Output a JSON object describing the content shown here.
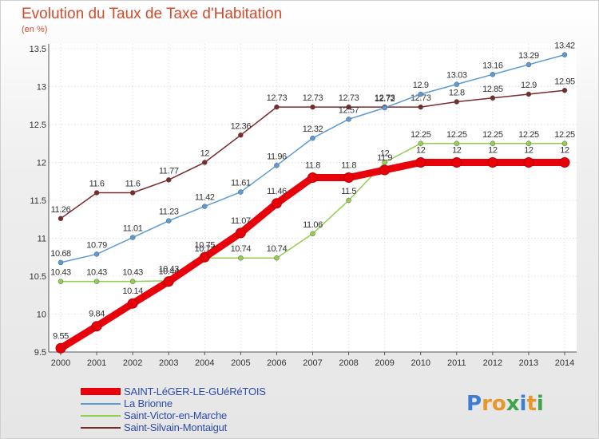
{
  "title": "Evolution du Taux de Taxe d'Habitation",
  "subtitle": "(en %)",
  "logo": {
    "text": "Proxiti",
    "colors": [
      "#3a7fd5",
      "#e8962c",
      "#e8962c",
      "#3fa34d",
      "#3a7fd5",
      "#e8962c",
      "#3fa34d"
    ]
  },
  "chart_data": {
    "type": "line",
    "x": [
      "2000",
      "2001",
      "2002",
      "2003",
      "2004",
      "2005",
      "2006",
      "2007",
      "2008",
      "2009",
      "2010",
      "2011",
      "2012",
      "2013",
      "2014"
    ],
    "ylim": [
      9.5,
      13.5
    ],
    "y_ticks": [
      "9.5",
      "10",
      "10.5",
      "11",
      "11.5",
      "12",
      "12.5",
      "13",
      "13.5"
    ],
    "grid": true,
    "legend_position": "bottom-left",
    "series": [
      {
        "name": "Saint-Silvain-Montaigut",
        "color": "#7a2a2a",
        "values": [
          11.26,
          11.6,
          11.6,
          11.77,
          12,
          12.36,
          12.73,
          12.73,
          12.73,
          12.73,
          12.73,
          12.8,
          12.85,
          12.9,
          12.95
        ],
        "labels": [
          "11.26",
          "11.6",
          "11.6",
          "11.77",
          "12",
          "12.36",
          "12.73",
          "12.73",
          "12.73",
          "12.73",
          "12.73",
          "12.8",
          "12.85",
          "12.9",
          "12.95"
        ]
      },
      {
        "name": "La Brionne",
        "color": "#5b9bd5",
        "values": [
          10.68,
          10.79,
          11.01,
          11.23,
          11.42,
          11.61,
          11.96,
          12.32,
          12.57,
          12.72,
          12.9,
          13.03,
          13.16,
          13.29,
          13.42
        ],
        "labels": [
          "10.68",
          "10.79",
          "11.01",
          "11.23",
          "11.42",
          "11.61",
          "11.96",
          "12.32",
          "12.57",
          "12.72",
          "12.9",
          "13.03",
          "13.16",
          "13.29",
          "13.42"
        ]
      },
      {
        "name": "Saint-Victor-en-Marche",
        "color": "#8fd14f",
        "values": [
          10.43,
          10.43,
          10.43,
          10.44,
          10.74,
          10.74,
          10.74,
          11.06,
          11.5,
          12,
          12.25,
          12.25,
          12.25,
          12.25,
          12.25
        ],
        "labels": [
          "10.43",
          "10.43",
          "10.43",
          "10.44",
          "10.74",
          "10.74",
          "10.74",
          "11.06",
          "11.5",
          "12",
          "12.25",
          "12.25",
          "12.25",
          "12.25",
          "12.25"
        ]
      },
      {
        "name": "SAINT-LéGER-LE-GUéRéTOIS",
        "color": "#e8000b",
        "values": [
          9.55,
          9.84,
          10.14,
          10.43,
          10.75,
          11.07,
          11.46,
          11.8,
          11.8,
          11.9,
          12,
          12,
          12,
          12,
          12
        ],
        "labels": [
          "9.55",
          "9.84",
          "10.14",
          "10.43",
          "10.75",
          "11.07",
          "11.46",
          "11.8",
          "11.8",
          "11.9",
          "12",
          "12",
          "12",
          "12",
          "12"
        ]
      }
    ]
  },
  "legend": [
    {
      "label": "SAINT-LéGER-LE-GUéRéTOIS",
      "color": "#e8000b",
      "weight": 9
    },
    {
      "label": "La Brionne",
      "color": "#5b9bd5",
      "weight": 2
    },
    {
      "label": "Saint-Victor-en-Marche",
      "color": "#8fd14f",
      "weight": 2
    },
    {
      "label": "Saint-Silvain-Montaigut",
      "color": "#7a2a2a",
      "weight": 2
    }
  ]
}
